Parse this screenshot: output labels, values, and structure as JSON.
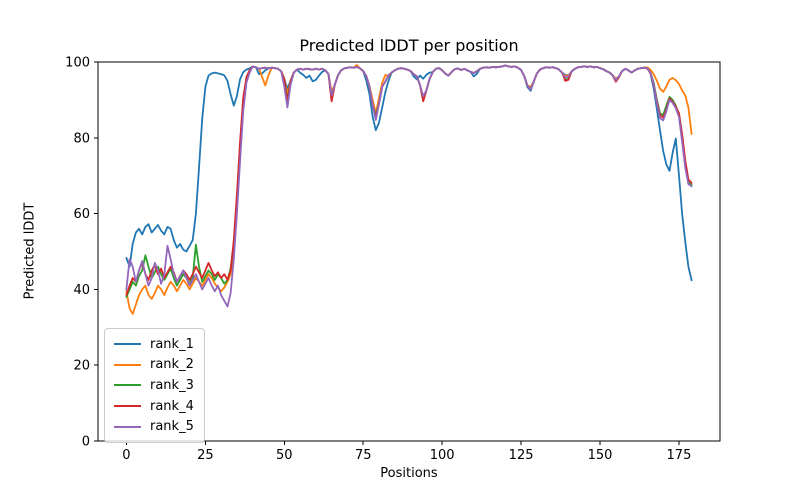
{
  "chart_data": {
    "type": "line",
    "title": "Predicted lDDT per position",
    "xlabel": "Positions",
    "ylabel": "Predicted lDDT",
    "xlim": [
      -9,
      188
    ],
    "ylim": [
      0,
      100
    ],
    "xticks": [
      0,
      25,
      50,
      75,
      100,
      125,
      150,
      175
    ],
    "yticks": [
      0,
      20,
      40,
      60,
      80,
      100
    ],
    "grid": false,
    "legend_position": "lower left",
    "background_color": "#ffffff",
    "spine_color": "#000000",
    "x": [
      0,
      1,
      2,
      3,
      4,
      5,
      6,
      7,
      8,
      9,
      10,
      11,
      12,
      13,
      14,
      15,
      16,
      17,
      18,
      19,
      20,
      21,
      22,
      23,
      24,
      25,
      26,
      27,
      28,
      29,
      30,
      31,
      32,
      33,
      34,
      35,
      36,
      37,
      38,
      39,
      40,
      41,
      42,
      43,
      44,
      45,
      46,
      47,
      48,
      49,
      50,
      51,
      52,
      53,
      54,
      55,
      56,
      57,
      58,
      59,
      60,
      61,
      62,
      63,
      64,
      65,
      66,
      67,
      68,
      69,
      70,
      71,
      72,
      73,
      74,
      75,
      76,
      77,
      78,
      79,
      80,
      81,
      82,
      83,
      84,
      85,
      86,
      87,
      88,
      89,
      90,
      91,
      92,
      93,
      94,
      95,
      96,
      97,
      98,
      99,
      100,
      101,
      102,
      103,
      104,
      105,
      106,
      107,
      108,
      109,
      110,
      111,
      112,
      113,
      114,
      115,
      116,
      117,
      118,
      119,
      120,
      121,
      122,
      123,
      124,
      125,
      126,
      127,
      128,
      129,
      130,
      131,
      132,
      133,
      134,
      135,
      136,
      137,
      138,
      139,
      140,
      141,
      142,
      143,
      144,
      145,
      146,
      147,
      148,
      149,
      150,
      151,
      152,
      153,
      154,
      155,
      156,
      157,
      158,
      159,
      160,
      161,
      162,
      163,
      164,
      165,
      166,
      167,
      168,
      169,
      170,
      171,
      172,
      173,
      174,
      175,
      176,
      177,
      178,
      179
    ],
    "series": [
      {
        "name": "rank_1",
        "color": "#1f77b4",
        "values": [
          48.3,
          46.0,
          52.0,
          55.0,
          56.0,
          54.5,
          56.5,
          57.2,
          55.0,
          56.0,
          57.0,
          55.5,
          54.5,
          56.5,
          56.0,
          53.0,
          51.0,
          52.0,
          50.5,
          50.0,
          51.5,
          53.0,
          60.0,
          72.0,
          85.0,
          93.5,
          96.4,
          97.0,
          97.2,
          97.0,
          96.8,
          96.5,
          95.0,
          91.5,
          88.5,
          91.0,
          95.5,
          97.3,
          98.0,
          98.3,
          98.8,
          98.6,
          96.8,
          97.0,
          97.8,
          98.3,
          98.5,
          98.4,
          98.2,
          97.6,
          95.5,
          93.0,
          95.0,
          97.2,
          98.0,
          97.2,
          96.6,
          95.8,
          96.4,
          94.9,
          95.3,
          96.4,
          97.4,
          97.8,
          96.8,
          91.4,
          94.0,
          96.5,
          97.8,
          98.3,
          98.5,
          98.6,
          98.5,
          98.7,
          98.3,
          97.6,
          95.0,
          91.5,
          85.5,
          82.0,
          84.0,
          88.0,
          92.0,
          95.0,
          97.2,
          97.8,
          98.2,
          98.4,
          98.2,
          98.0,
          97.6,
          96.2,
          95.4,
          96.4,
          95.6,
          96.6,
          97.2,
          97.3,
          98.2,
          98.4,
          97.8,
          96.9,
          96.4,
          97.4,
          98.1,
          98.3,
          97.9,
          98.2,
          97.8,
          97.4,
          96.2,
          96.9,
          98.2,
          98.5,
          98.6,
          98.5,
          98.7,
          98.6,
          98.7,
          98.8,
          99.1,
          98.8,
          98.7,
          98.8,
          98.5,
          97.9,
          96.3,
          93.4,
          92.4,
          94.8,
          97.0,
          98.0,
          98.4,
          98.6,
          98.5,
          98.6,
          98.4,
          98.0,
          97.2,
          96.6,
          96.5,
          97.5,
          98.2,
          98.6,
          98.7,
          98.8,
          98.7,
          98.8,
          98.6,
          98.7,
          98.4,
          98.1,
          97.6,
          97.2,
          96.5,
          95.5,
          96.2,
          97.6,
          98.2,
          97.8,
          97.2,
          97.8,
          98.2,
          98.4,
          98.5,
          98.4,
          97.0,
          93.0,
          87.5,
          82.0,
          76.5,
          73.0,
          71.3,
          76.0,
          79.8,
          70.0,
          60.0,
          52.5,
          46.0,
          42.4
        ]
      },
      {
        "name": "rank_2",
        "color": "#ff7f0e",
        "values": [
          39.5,
          35.0,
          33.5,
          36.0,
          38.5,
          40.0,
          41.0,
          38.5,
          37.5,
          39.0,
          41.0,
          40.0,
          38.5,
          40.5,
          42.0,
          41.0,
          39.5,
          41.0,
          42.5,
          41.5,
          40.0,
          41.5,
          43.0,
          42.0,
          41.0,
          42.5,
          44.0,
          43.0,
          41.5,
          40.5,
          39.5,
          40.5,
          42.0,
          44.0,
          50.0,
          62.0,
          76.0,
          88.0,
          95.0,
          97.5,
          98.8,
          98.6,
          98.2,
          96.0,
          93.8,
          96.5,
          98.5,
          98.4,
          98.2,
          97.6,
          95.5,
          91.5,
          95.0,
          97.2,
          98.0,
          98.2,
          98.0,
          98.2,
          98.1,
          98.0,
          98.2,
          98.0,
          98.2,
          97.8,
          96.8,
          92.2,
          94.0,
          96.5,
          97.8,
          98.3,
          98.5,
          98.6,
          98.5,
          99.2,
          98.3,
          97.6,
          96.2,
          93.5,
          90.0,
          86.4,
          90.5,
          94.5,
          96.6,
          96.2,
          97.2,
          97.8,
          98.2,
          98.4,
          98.2,
          98.0,
          97.6,
          96.8,
          96.2,
          93.8,
          90.2,
          92.5,
          95.5,
          97.3,
          98.2,
          98.4,
          97.8,
          96.9,
          96.4,
          97.4,
          98.1,
          98.3,
          97.9,
          98.2,
          97.8,
          97.4,
          97.1,
          97.6,
          98.2,
          98.5,
          98.6,
          98.5,
          98.7,
          98.6,
          98.7,
          98.8,
          99.1,
          98.8,
          98.7,
          98.8,
          98.5,
          97.9,
          96.3,
          93.8,
          93.4,
          94.8,
          97.0,
          98.0,
          98.4,
          98.6,
          98.5,
          98.6,
          98.4,
          98.0,
          97.2,
          96.3,
          96.5,
          97.5,
          98.2,
          98.6,
          98.7,
          98.8,
          98.7,
          98.8,
          98.6,
          98.7,
          98.4,
          98.1,
          97.6,
          97.2,
          96.5,
          95.6,
          96.2,
          97.6,
          98.2,
          97.8,
          97.2,
          97.8,
          98.2,
          98.4,
          98.5,
          98.6,
          98.0,
          96.8,
          95.0,
          93.0,
          92.1,
          93.5,
          95.3,
          95.8,
          95.2,
          94.2,
          92.5,
          91.2,
          88.0,
          81.0
        ]
      },
      {
        "name": "rank_3",
        "color": "#2ca02c",
        "values": [
          38.0,
          40.0,
          42.0,
          41.0,
          43.5,
          45.0,
          49.0,
          46.0,
          43.0,
          44.5,
          46.0,
          44.0,
          42.5,
          44.0,
          45.5,
          43.0,
          41.0,
          42.5,
          44.0,
          43.0,
          41.5,
          43.0,
          51.8,
          46.0,
          42.0,
          43.5,
          45.0,
          44.0,
          42.5,
          44.0,
          43.0,
          41.5,
          42.5,
          45.5,
          52.0,
          64.0,
          78.0,
          90.0,
          95.5,
          97.6,
          98.8,
          98.6,
          98.2,
          98.4,
          98.5,
          98.3,
          98.5,
          98.4,
          98.2,
          97.6,
          95.5,
          89.8,
          95.0,
          97.2,
          98.0,
          98.2,
          98.0,
          98.2,
          98.1,
          98.0,
          98.2,
          98.0,
          98.2,
          97.8,
          96.8,
          90.2,
          94.0,
          96.5,
          97.8,
          98.3,
          98.5,
          98.6,
          98.5,
          98.7,
          98.3,
          97.6,
          96.2,
          93.5,
          88.5,
          86.0,
          89.0,
          93.5,
          94.8,
          96.5,
          97.2,
          97.8,
          98.2,
          98.4,
          98.2,
          98.0,
          97.6,
          96.8,
          96.2,
          93.8,
          90.6,
          92.5,
          95.5,
          97.3,
          98.2,
          98.4,
          97.8,
          96.9,
          96.4,
          97.4,
          98.1,
          98.3,
          97.9,
          98.2,
          97.8,
          97.4,
          97.1,
          97.6,
          98.2,
          98.5,
          98.6,
          98.5,
          98.7,
          98.6,
          98.7,
          98.8,
          99.1,
          98.8,
          98.7,
          98.8,
          98.5,
          97.9,
          96.3,
          93.8,
          92.8,
          94.8,
          97.0,
          98.0,
          98.4,
          98.6,
          98.5,
          98.6,
          98.4,
          98.0,
          97.2,
          95.3,
          95.6,
          97.5,
          98.2,
          98.6,
          98.7,
          98.8,
          98.7,
          98.8,
          98.6,
          98.7,
          98.4,
          98.1,
          97.6,
          97.2,
          96.5,
          95.2,
          96.2,
          97.6,
          98.2,
          97.8,
          97.2,
          97.8,
          98.2,
          98.4,
          98.5,
          98.3,
          97.2,
          94.5,
          90.0,
          86.5,
          86.0,
          88.5,
          90.8,
          90.0,
          88.5,
          86.0,
          80.0,
          73.0,
          68.2,
          67.6
        ]
      },
      {
        "name": "rank_4",
        "color": "#d62728",
        "values": [
          38.5,
          41.0,
          43.0,
          42.0,
          45.0,
          47.0,
          44.0,
          42.5,
          45.0,
          46.5,
          44.0,
          45.5,
          43.0,
          44.5,
          46.0,
          44.5,
          42.0,
          43.5,
          45.0,
          44.0,
          42.5,
          44.0,
          46.0,
          44.5,
          43.0,
          45.0,
          47.0,
          45.0,
          43.5,
          44.5,
          43.0,
          44.0,
          42.5,
          45.0,
          53.0,
          65.0,
          79.0,
          90.5,
          96.0,
          97.8,
          98.8,
          98.6,
          98.2,
          98.4,
          98.5,
          98.3,
          98.5,
          98.4,
          98.2,
          97.6,
          95.5,
          89.3,
          95.0,
          97.2,
          98.0,
          98.2,
          98.0,
          98.2,
          98.1,
          98.0,
          98.2,
          98.0,
          98.2,
          97.8,
          96.8,
          89.6,
          94.0,
          96.5,
          97.8,
          98.3,
          98.5,
          98.6,
          98.5,
          98.7,
          98.3,
          97.6,
          96.2,
          93.5,
          88.5,
          85.4,
          89.0,
          93.5,
          94.8,
          96.5,
          97.2,
          97.8,
          98.2,
          98.4,
          98.2,
          98.0,
          97.6,
          96.8,
          96.2,
          93.8,
          89.6,
          92.5,
          95.5,
          97.3,
          98.2,
          98.4,
          97.8,
          96.9,
          96.4,
          97.4,
          98.1,
          98.3,
          97.9,
          98.2,
          97.8,
          97.4,
          97.1,
          97.6,
          98.2,
          98.5,
          98.6,
          98.5,
          98.7,
          98.6,
          98.7,
          98.8,
          99.1,
          98.8,
          98.7,
          98.8,
          98.5,
          97.9,
          96.3,
          93.8,
          92.8,
          94.8,
          97.0,
          98.0,
          98.4,
          98.6,
          98.5,
          98.6,
          98.4,
          98.0,
          97.2,
          95.0,
          95.3,
          97.5,
          98.2,
          98.6,
          98.7,
          98.8,
          98.7,
          98.8,
          98.6,
          98.7,
          98.4,
          98.1,
          97.6,
          97.2,
          96.5,
          94.8,
          96.0,
          97.6,
          98.2,
          97.8,
          97.2,
          97.8,
          98.2,
          98.4,
          98.5,
          98.2,
          97.0,
          94.0,
          89.5,
          86.0,
          85.3,
          87.5,
          90.4,
          89.5,
          88.2,
          86.5,
          81.0,
          74.0,
          69.0,
          68.1
        ]
      },
      {
        "name": "rank_5",
        "color": "#9467bd",
        "values": [
          40.0,
          48.0,
          46.0,
          42.0,
          45.0,
          47.5,
          44.0,
          41.0,
          43.0,
          47.0,
          45.0,
          41.5,
          44.0,
          51.5,
          48.0,
          44.0,
          42.0,
          43.5,
          45.0,
          43.0,
          41.0,
          42.5,
          44.0,
          42.0,
          40.0,
          41.5,
          43.0,
          41.0,
          39.5,
          41.0,
          38.5,
          37.0,
          35.5,
          39.0,
          48.0,
          60.0,
          74.0,
          87.0,
          94.5,
          97.2,
          98.8,
          98.6,
          98.2,
          98.4,
          98.5,
          98.3,
          98.5,
          98.4,
          98.2,
          97.6,
          93.5,
          88.0,
          94.0,
          97.2,
          98.0,
          98.2,
          98.0,
          98.2,
          98.1,
          98.0,
          98.2,
          98.0,
          98.2,
          97.8,
          96.8,
          91.2,
          94.0,
          96.5,
          97.8,
          98.3,
          98.5,
          98.6,
          98.5,
          98.7,
          98.3,
          97.6,
          96.2,
          93.5,
          88.5,
          84.7,
          89.0,
          93.5,
          94.8,
          96.5,
          97.2,
          97.8,
          98.2,
          98.4,
          98.2,
          98.0,
          97.6,
          96.8,
          96.2,
          93.8,
          91.0,
          92.5,
          95.5,
          97.3,
          98.2,
          98.4,
          97.8,
          96.9,
          96.4,
          97.4,
          98.1,
          98.3,
          97.9,
          98.2,
          97.8,
          97.4,
          97.1,
          97.6,
          98.2,
          98.5,
          98.6,
          98.5,
          98.7,
          98.6,
          98.7,
          98.8,
          99.1,
          98.8,
          98.7,
          98.8,
          98.5,
          97.9,
          96.3,
          93.8,
          92.8,
          94.8,
          97.0,
          98.0,
          98.4,
          98.6,
          98.5,
          98.6,
          98.4,
          98.0,
          97.2,
          95.9,
          96.2,
          97.5,
          98.2,
          98.6,
          98.7,
          98.8,
          98.7,
          98.8,
          98.6,
          98.7,
          98.4,
          98.1,
          97.6,
          97.2,
          96.5,
          95.2,
          96.2,
          97.6,
          98.2,
          97.8,
          97.2,
          97.8,
          98.2,
          98.4,
          98.5,
          98.3,
          97.1,
          94.2,
          89.0,
          85.2,
          84.6,
          87.0,
          90.0,
          89.2,
          87.8,
          85.5,
          79.0,
          72.0,
          67.8,
          67.2
        ]
      }
    ]
  }
}
